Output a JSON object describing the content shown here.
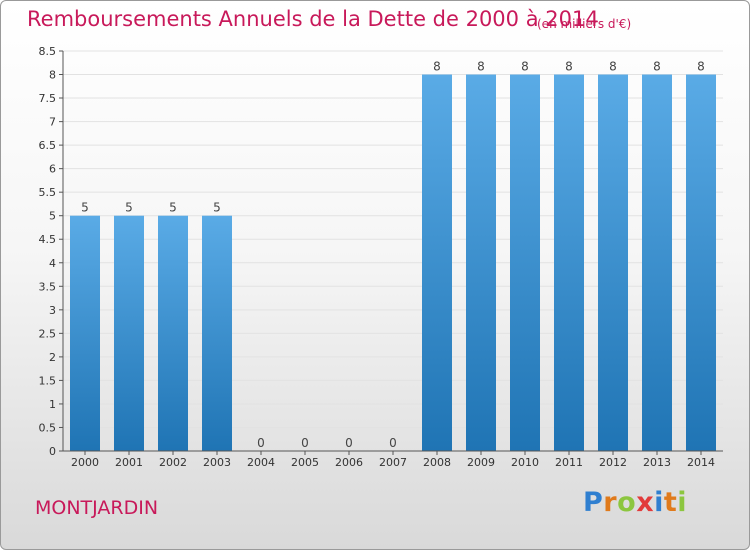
{
  "title": "Remboursements Annuels de la Dette de 2000 à 2014",
  "subtitle": "(en milliers d'€)",
  "commune": "MONTJARDIN",
  "logo": {
    "letters": [
      {
        "char": "P",
        "color": "#2f7fd0"
      },
      {
        "char": "r",
        "color": "#e07a1b"
      },
      {
        "char": "o",
        "color": "#8cc63f"
      },
      {
        "char": "x",
        "color": "#e23b3b"
      },
      {
        "char": "i",
        "color": "#2f7fd0"
      },
      {
        "char": "t",
        "color": "#e07a1b"
      },
      {
        "char": "i",
        "color": "#8cc63f"
      }
    ]
  },
  "colors": {
    "title": "#c8195a",
    "bar_top": "#5aabe6",
    "bar_bottom": "#1f74b4"
  },
  "chart_data": {
    "type": "bar",
    "title": "Remboursements Annuels de la Dette de 2000 à 2014",
    "xlabel": "",
    "ylabel": "",
    "ylim": [
      0,
      8.5
    ],
    "yticks": [
      "0",
      "0.5",
      "1",
      "1.5",
      "2",
      "2.5",
      "3",
      "3.5",
      "4",
      "4.5",
      "5",
      "5.5",
      "6",
      "6.5",
      "7",
      "7.5",
      "8",
      "8.5"
    ],
    "categories": [
      "2000",
      "2001",
      "2002",
      "2003",
      "2004",
      "2005",
      "2006",
      "2007",
      "2008",
      "2009",
      "2010",
      "2011",
      "2012",
      "2013",
      "2014"
    ],
    "values": [
      5,
      5,
      5,
      5,
      0,
      0,
      0,
      0,
      8,
      8,
      8,
      8,
      8,
      8,
      8
    ],
    "data_labels": [
      "5",
      "5",
      "5",
      "5",
      "0",
      "0",
      "0",
      "0",
      "8",
      "8",
      "8",
      "8",
      "8",
      "8",
      "8"
    ],
    "grid": true
  }
}
